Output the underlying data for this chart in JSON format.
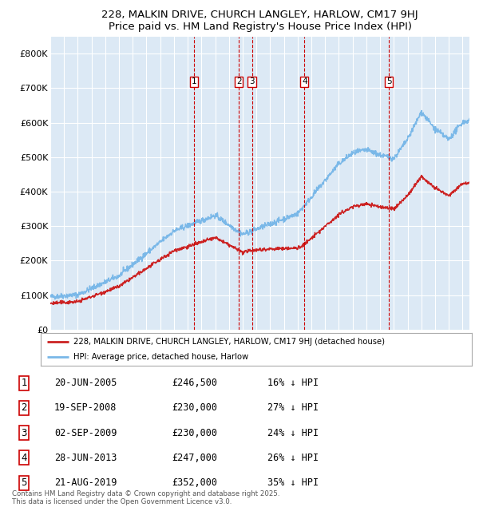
{
  "title": "228, MALKIN DRIVE, CHURCH LANGLEY, HARLOW, CM17 9HJ",
  "subtitle": "Price paid vs. HM Land Registry's House Price Index (HPI)",
  "ylim": [
    0,
    850000
  ],
  "yticks": [
    0,
    100000,
    200000,
    300000,
    400000,
    500000,
    600000,
    700000,
    800000
  ],
  "ytick_labels": [
    "£0",
    "£100K",
    "£200K",
    "£300K",
    "£400K",
    "£500K",
    "£600K",
    "£700K",
    "£800K"
  ],
  "background_color": "#dce9f5",
  "grid_color": "#ffffff",
  "hpi_color": "#7ab8e8",
  "price_color": "#cc2222",
  "legend_label_price": "228, MALKIN DRIVE, CHURCH LANGLEY, HARLOW, CM17 9HJ (detached house)",
  "legend_label_hpi": "HPI: Average price, detached house, Harlow",
  "transactions": [
    {
      "num": 1,
      "date": "20-JUN-2005",
      "price": 246500,
      "pct": "16%",
      "x_year": 2005.47
    },
    {
      "num": 2,
      "date": "19-SEP-2008",
      "price": 230000,
      "pct": "27%",
      "x_year": 2008.72
    },
    {
      "num": 3,
      "date": "02-SEP-2009",
      "price": 230000,
      "pct": "24%",
      "x_year": 2009.67
    },
    {
      "num": 4,
      "date": "28-JUN-2013",
      "price": 247000,
      "pct": "26%",
      "x_year": 2013.49
    },
    {
      "num": 5,
      "date": "21-AUG-2019",
      "price": 352000,
      "pct": "35%",
      "x_year": 2019.64
    }
  ],
  "footer": "Contains HM Land Registry data © Crown copyright and database right 2025.\nThis data is licensed under the Open Government Licence v3.0.",
  "xmin": 1995.0,
  "xmax": 2025.5
}
